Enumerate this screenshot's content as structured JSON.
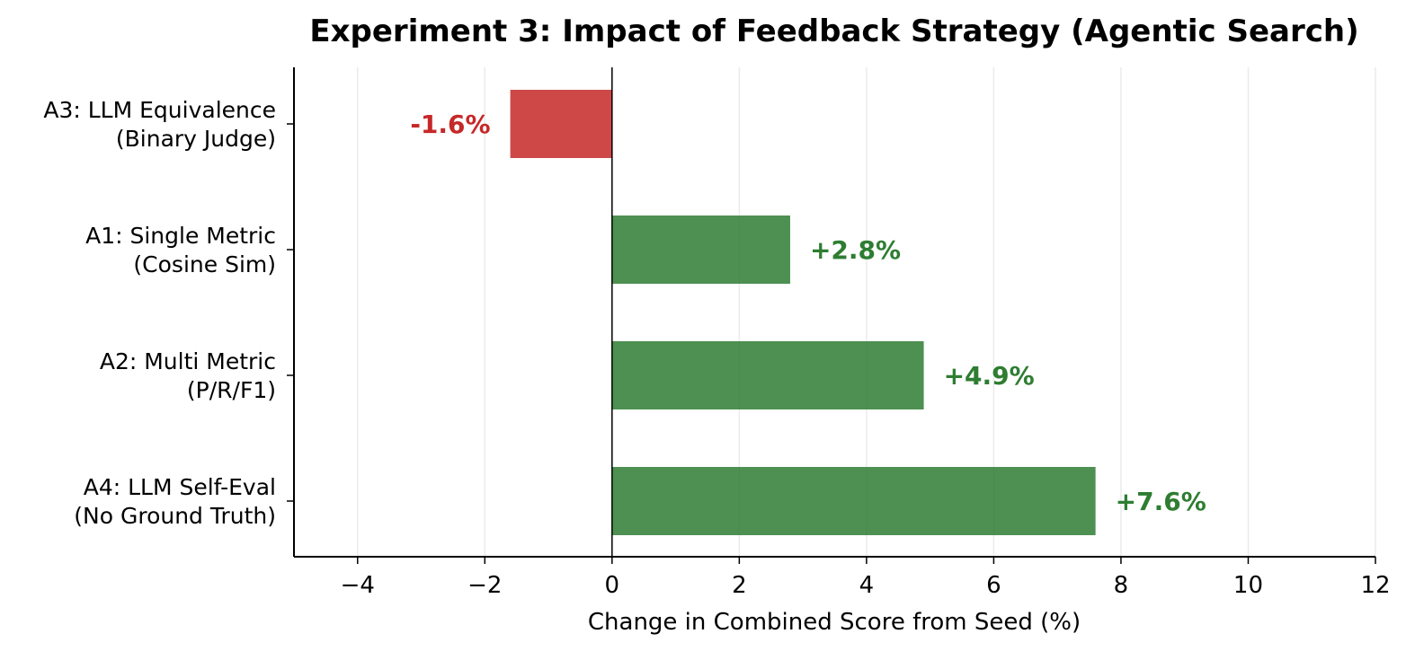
{
  "chart_data": {
    "type": "bar",
    "orientation": "horizontal",
    "title": "Experiment 3: Impact of Feedback Strategy (Agentic Search)",
    "xlabel": "Change in Combined Score from Seed (%)",
    "ylabel": "",
    "xlim": [
      -5,
      12
    ],
    "xticks": [
      -4,
      -2,
      0,
      2,
      4,
      6,
      8,
      10,
      12
    ],
    "xtick_labels": [
      "−4",
      "−2",
      "0",
      "2",
      "4",
      "6",
      "8",
      "10",
      "12"
    ],
    "grid": "vertical",
    "categories": [
      [
        "A3: LLM Equivalence",
        "(Binary Judge)"
      ],
      [
        "A1: Single Metric",
        "(Cosine Sim)"
      ],
      [
        "A2: Multi Metric",
        "(P/R/F1)"
      ],
      [
        "A4: LLM Self-Eval",
        "(No Ground Truth)"
      ]
    ],
    "values": [
      -1.6,
      2.8,
      4.9,
      7.6
    ],
    "data_labels": [
      "-1.6%",
      "+2.8%",
      "+4.9%",
      "+7.6%"
    ],
    "colors": {
      "negative_bar": "#c62828",
      "positive_bar": "#2e7d32",
      "negative_label": "#c62828",
      "positive_label": "#2e7d32",
      "grid": "#ebebeb",
      "axis": "#000000"
    }
  }
}
